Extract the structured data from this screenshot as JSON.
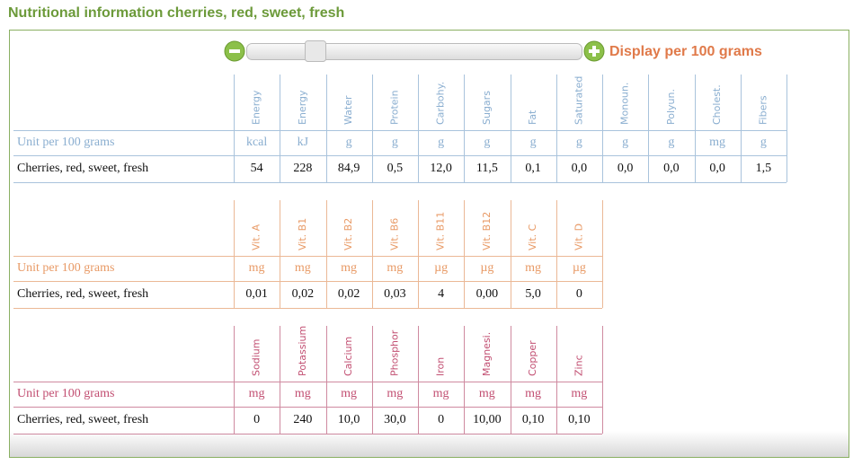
{
  "title": "Nutritional information cherries, red, sweet, fresh",
  "slider": {
    "label": "Display per 100 grams"
  },
  "tables": [
    {
      "headers": [
        "Energy",
        "Energy",
        "Water",
        "Protein",
        "Carbohy.",
        "Sugars",
        "Fat",
        "Saturated",
        "Monoun.",
        "Polyun.",
        "Cholest.",
        "Fibers"
      ],
      "unit_label": "Unit per 100 grams",
      "units": [
        "kcal",
        "kJ",
        "g",
        "g",
        "g",
        "g",
        "g",
        "g",
        "g",
        "g",
        "mg",
        "g"
      ],
      "row_label": "Cherries, red, sweet, fresh",
      "values": [
        "54",
        "228",
        "84,9",
        "0,5",
        "12,0",
        "11,5",
        "0,1",
        "0,0",
        "0,0",
        "0,0",
        "0,0",
        "1,5"
      ]
    },
    {
      "headers": [
        "Vit. A",
        "Vit. B1",
        "Vit. B2",
        "Vit. B6",
        "Vit. B11",
        "Vit. B12",
        "Vit. C",
        "Vit. D"
      ],
      "unit_label": "Unit per 100 grams",
      "units": [
        "mg",
        "mg",
        "mg",
        "mg",
        "µg",
        "µg",
        "mg",
        "µg"
      ],
      "row_label": "Cherries, red, sweet, fresh",
      "values": [
        "0,01",
        "0,02",
        "0,02",
        "0,03",
        "4",
        "0,00",
        "5,0",
        "0"
      ]
    },
    {
      "headers": [
        "Sodium",
        "Potassium",
        "Calcium",
        "Phosphor",
        "Iron",
        "Magnesi.",
        "Copper",
        "Zinc"
      ],
      "unit_label": "Unit per 100 grams",
      "units": [
        "mg",
        "mg",
        "mg",
        "mg",
        "mg",
        "mg",
        "mg",
        "mg"
      ],
      "row_label": "Cherries, red, sweet, fresh",
      "values": [
        "0",
        "240",
        "10,0",
        "30,0",
        "0",
        "10,00",
        "0,10",
        "0,10"
      ]
    }
  ]
}
